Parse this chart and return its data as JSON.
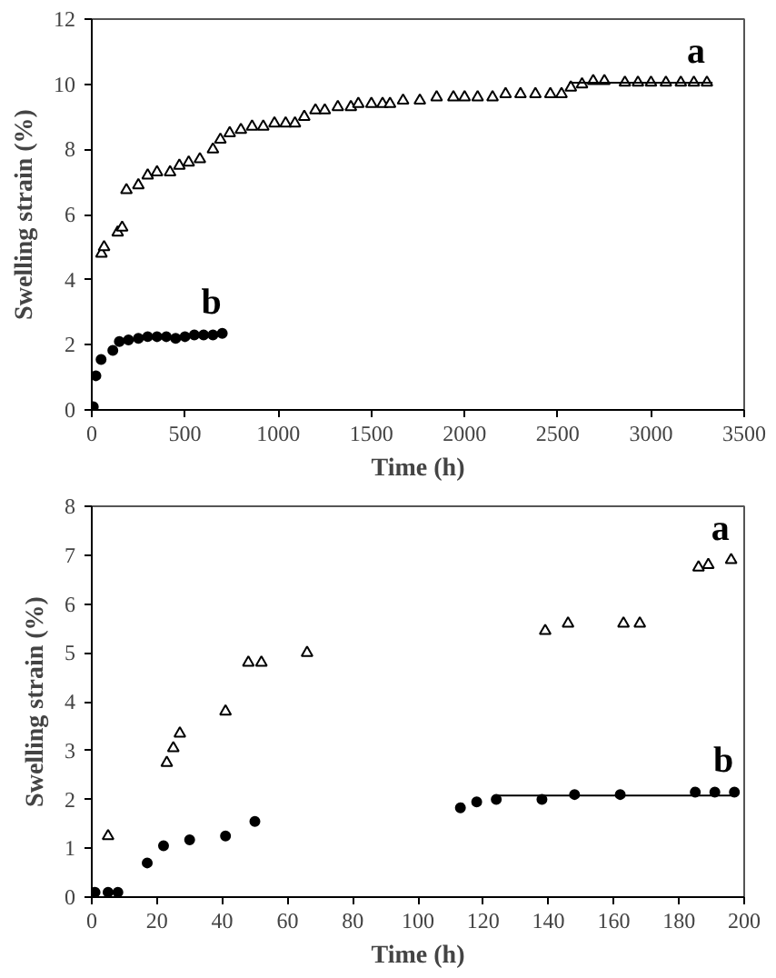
{
  "chart_data": [
    {
      "type": "scatter",
      "xlabel": "Time (h)",
      "ylabel": "Swelling strain (%)",
      "xlim": [
        0,
        3500
      ],
      "ylim": [
        0,
        12
      ],
      "xticks": [
        0,
        500,
        1000,
        1500,
        2000,
        2500,
        3000,
        3500
      ],
      "yticks": [
        0,
        2,
        4,
        6,
        8,
        10,
        12
      ],
      "grid": false,
      "series": [
        {
          "name": "a",
          "color": "#000000",
          "marker": "triangle",
          "x": [
            52,
            66,
            139,
            163,
            186,
            250,
            300,
            350,
            420,
            470,
            520,
            580,
            650,
            690,
            740,
            800,
            860,
            920,
            980,
            1040,
            1090,
            1140,
            1200,
            1250,
            1320,
            1390,
            1430,
            1500,
            1560,
            1600,
            1670,
            1760,
            1850,
            1940,
            2000,
            2070,
            2150,
            2220,
            2300,
            2380,
            2460,
            2520,
            2570,
            2630,
            2690,
            2750,
            2860,
            2930,
            3000,
            3080,
            3160,
            3230,
            3300
          ],
          "values": [
            4.8,
            5.0,
            5.45,
            5.6,
            6.75,
            6.9,
            7.2,
            7.3,
            7.3,
            7.5,
            7.6,
            7.7,
            8.0,
            8.3,
            8.5,
            8.6,
            8.7,
            8.7,
            8.8,
            8.8,
            8.8,
            9.0,
            9.2,
            9.2,
            9.3,
            9.3,
            9.4,
            9.4,
            9.4,
            9.4,
            9.5,
            9.5,
            9.6,
            9.6,
            9.6,
            9.6,
            9.6,
            9.7,
            9.7,
            9.7,
            9.7,
            9.7,
            9.9,
            10.0,
            10.1,
            10.1,
            10.05,
            10.05,
            10.05,
            10.05,
            10.05,
            10.05,
            10.05
          ]
        },
        {
          "name": "b",
          "color": "#000000",
          "marker": "circle",
          "x": [
            8,
            22,
            50,
            113,
            148,
            197,
            250,
            300,
            350,
            400,
            450,
            500,
            550,
            600,
            650,
            700
          ],
          "values": [
            0.1,
            1.05,
            1.55,
            1.83,
            2.1,
            2.15,
            2.2,
            2.25,
            2.25,
            2.25,
            2.2,
            2.25,
            2.3,
            2.3,
            2.3,
            2.35
          ]
        },
        {
          "type": "line",
          "color": "#000000",
          "x": [
            2560,
            3330
          ],
          "values": [
            10.05,
            10.05
          ]
        }
      ]
    },
    {
      "type": "scatter",
      "xlabel": "Time (h)",
      "ylabel": "Swelling strain (%)",
      "xlim": [
        0,
        200
      ],
      "ylim": [
        0,
        8
      ],
      "xticks": [
        0,
        20,
        40,
        60,
        80,
        100,
        120,
        140,
        160,
        180,
        200
      ],
      "yticks": [
        0,
        1,
        2,
        3,
        4,
        5,
        6,
        7,
        8
      ],
      "grid": false,
      "series": [
        {
          "name": "a",
          "color": "#000000",
          "marker": "triangle",
          "x": [
            5,
            23,
            25,
            27,
            41,
            48,
            52,
            66,
            139,
            146,
            163,
            168,
            186,
            189,
            196
          ],
          "values": [
            1.25,
            2.75,
            3.05,
            3.35,
            3.8,
            4.8,
            4.8,
            5.0,
            5.45,
            5.6,
            5.6,
            5.6,
            6.75,
            6.8,
            6.9
          ]
        },
        {
          "name": "b",
          "color": "#000000",
          "marker": "circle",
          "x": [
            1,
            5,
            8,
            17,
            22,
            30,
            41,
            50,
            113,
            118,
            124,
            138,
            148,
            162,
            185,
            191,
            197
          ],
          "values": [
            0.1,
            0.1,
            0.1,
            0.7,
            1.05,
            1.17,
            1.25,
            1.55,
            1.83,
            1.95,
            2.0,
            2.0,
            2.1,
            2.1,
            2.15,
            2.15,
            2.15
          ]
        },
        {
          "type": "line",
          "color": "#000000",
          "x": [
            124,
            197
          ],
          "values": [
            2.08,
            2.08
          ]
        }
      ]
    }
  ]
}
